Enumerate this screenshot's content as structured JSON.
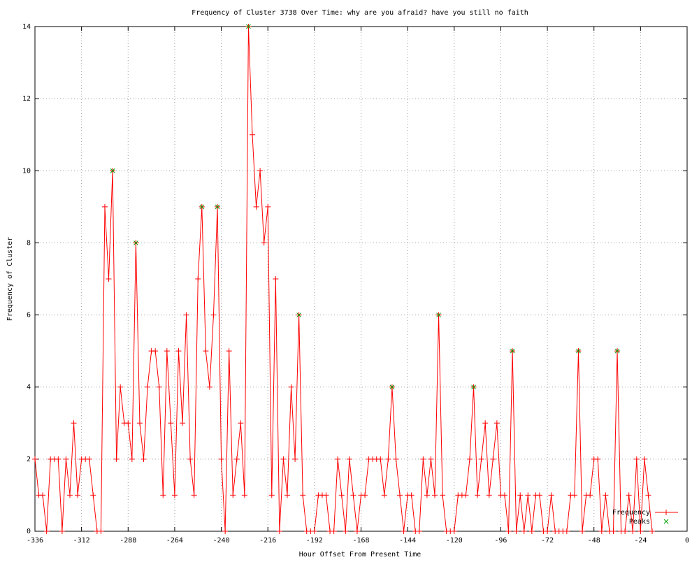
{
  "chart_data": {
    "type": "line",
    "title": "Frequency of Cluster 3738 Over Time: why are you afraid? have you still no faith",
    "x_label": "Hour Offset From Present Time",
    "y_label": "Frequency of Cluster",
    "x": [
      -336,
      -334,
      -332,
      -330,
      -328,
      -326,
      -324,
      -322,
      -320,
      -318,
      -316,
      -314,
      -312,
      -310,
      -308,
      -306,
      -304,
      -302,
      -300,
      -298,
      -296,
      -294,
      -292,
      -290,
      -288,
      -286,
      -284,
      -282,
      -280,
      -278,
      -276,
      -274,
      -272,
      -270,
      -268,
      -266,
      -264,
      -262,
      -260,
      -258,
      -256,
      -254,
      -252,
      -250,
      -248,
      -246,
      -244,
      -242,
      -240,
      -238,
      -236,
      -234,
      -232,
      -230,
      -228,
      -226,
      -224,
      -222,
      -220,
      -218,
      -216,
      -214,
      -212,
      -210,
      -208,
      -206,
      -204,
      -202,
      -200,
      -198,
      -196,
      -194,
      -192,
      -190,
      -188,
      -186,
      -184,
      -182,
      -180,
      -178,
      -176,
      -174,
      -172,
      -170,
      -168,
      -166,
      -164,
      -162,
      -160,
      -158,
      -156,
      -154,
      -152,
      -150,
      -148,
      -146,
      -144,
      -142,
      -140,
      -138,
      -136,
      -134,
      -132,
      -130,
      -128,
      -126,
      -124,
      -122,
      -120,
      -118,
      -116,
      -114,
      -112,
      -110,
      -108,
      -106,
      -104,
      -102,
      -100,
      -98,
      -96,
      -94,
      -92,
      -90,
      -88,
      -86,
      -84,
      -82,
      -80,
      -78,
      -76,
      -74,
      -72,
      -70,
      -68,
      -66,
      -64,
      -62,
      -60,
      -58,
      -56,
      -54,
      -52,
      -50,
      -48,
      -46,
      -44,
      -42,
      -40,
      -38,
      -36,
      -34,
      -32,
      -30,
      -28,
      -26,
      -24,
      -22,
      -20,
      -18
    ],
    "series": [
      {
        "name": "Frequency",
        "color": "#ff0000",
        "marker": "plus",
        "values": [
          2,
          1,
          1,
          0,
          2,
          2,
          2,
          0,
          2,
          1,
          3,
          1,
          2,
          2,
          2,
          1,
          0,
          0,
          9,
          7,
          10,
          2,
          4,
          3,
          3,
          2,
          8,
          3,
          2,
          4,
          5,
          5,
          4,
          1,
          5,
          3,
          1,
          5,
          3,
          6,
          2,
          1,
          7,
          9,
          5,
          4,
          6,
          9,
          2,
          0,
          5,
          1,
          2,
          3,
          1,
          14,
          11,
          9,
          10,
          8,
          9,
          1,
          7,
          0,
          2,
          1,
          4,
          2,
          6,
          1,
          0,
          0,
          0,
          1,
          1,
          1,
          0,
          0,
          2,
          1,
          0,
          2,
          1,
          0,
          1,
          1,
          2,
          2,
          2,
          2,
          1,
          2,
          4,
          2,
          1,
          0,
          1,
          1,
          0,
          0,
          2,
          1,
          2,
          1,
          6,
          1,
          0,
          0,
          0,
          1,
          1,
          1,
          2,
          4,
          1,
          2,
          3,
          1,
          2,
          3,
          1,
          1,
          0,
          5,
          0,
          1,
          0,
          1,
          0,
          1,
          1,
          0,
          0,
          1,
          0,
          0,
          0,
          0,
          1,
          1,
          5,
          0,
          1,
          1,
          2,
          2,
          0,
          1,
          0,
          0,
          5,
          0,
          0,
          1,
          0,
          2,
          0,
          2,
          1,
          0
        ]
      },
      {
        "name": "Peaks",
        "color": "#00a000",
        "marker": "cross",
        "x": [
          -296,
          -284,
          -250,
          -242,
          -226,
          -200,
          -152,
          -128,
          -110,
          -90,
          -56,
          -36
        ],
        "values": [
          10,
          8,
          9,
          9,
          14,
          6,
          4,
          6,
          4,
          5,
          5,
          5
        ]
      }
    ],
    "xlim": [
      -336,
      0
    ],
    "xticks": [
      -336,
      -312,
      -288,
      -264,
      -240,
      -216,
      -192,
      -168,
      -144,
      -120,
      -96,
      -72,
      -48,
      -24,
      0
    ],
    "ylim": [
      0,
      14
    ],
    "yticks": [
      0,
      2,
      4,
      6,
      8,
      10,
      12,
      14
    ],
    "grid": true,
    "legend": "bottom-right"
  }
}
